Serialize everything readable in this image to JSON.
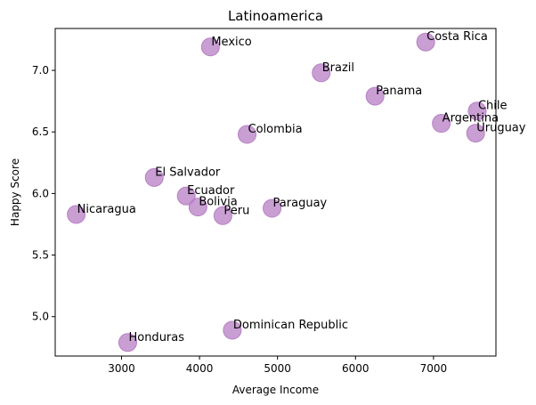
{
  "chart_data": {
    "type": "scatter",
    "title": "Latinoamerica",
    "xlabel": "Average Income",
    "ylabel": "Happy Score",
    "xlim": [
      2150,
      7800
    ],
    "ylim": [
      4.68,
      7.34
    ],
    "xticks": [
      3000,
      4000,
      5000,
      6000,
      7000
    ],
    "yticks": [
      5.0,
      5.5,
      6.0,
      6.5,
      7.0
    ],
    "xtick_labels": [
      "3000",
      "4000",
      "5000",
      "6000",
      "7000"
    ],
    "ytick_labels": [
      "5.0",
      "5.5",
      "6.0",
      "6.5",
      "7.0"
    ],
    "grid": false,
    "point_color": "#b77fc4",
    "points": [
      {
        "label": "Mexico",
        "x": 4140,
        "y": 7.19
      },
      {
        "label": "Costa Rica",
        "x": 6900,
        "y": 7.23
      },
      {
        "label": "Brazil",
        "x": 5560,
        "y": 6.98
      },
      {
        "label": "Panama",
        "x": 6250,
        "y": 6.79
      },
      {
        "label": "Chile",
        "x": 7560,
        "y": 6.67
      },
      {
        "label": "Argentina",
        "x": 7100,
        "y": 6.57
      },
      {
        "label": "Uruguay",
        "x": 7540,
        "y": 6.49
      },
      {
        "label": "Colombia",
        "x": 4610,
        "y": 6.48
      },
      {
        "label": "El Salvador",
        "x": 3420,
        "y": 6.13
      },
      {
        "label": "Ecuador",
        "x": 3830,
        "y": 5.98
      },
      {
        "label": "Bolivia",
        "x": 3980,
        "y": 5.89
      },
      {
        "label": "Peru",
        "x": 4300,
        "y": 5.82
      },
      {
        "label": "Paraguay",
        "x": 4930,
        "y": 5.88
      },
      {
        "label": "Nicaragua",
        "x": 2420,
        "y": 5.83
      },
      {
        "label": "Dominican Republic",
        "x": 4420,
        "y": 4.89
      },
      {
        "label": "Honduras",
        "x": 3080,
        "y": 4.79
      }
    ]
  }
}
